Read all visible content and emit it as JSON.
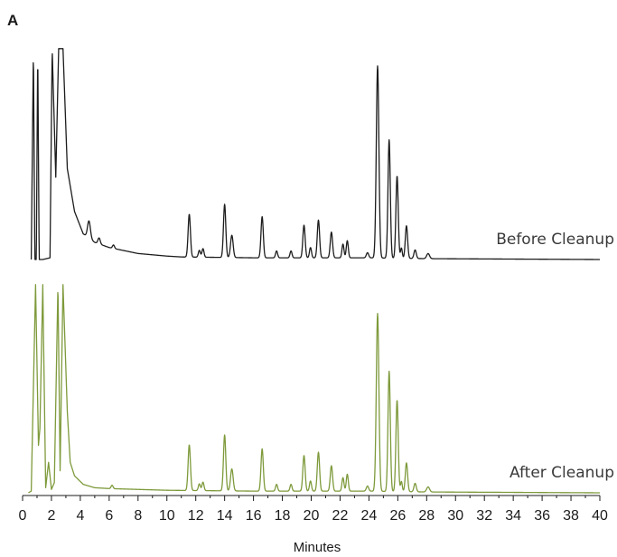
{
  "panel_label": "A",
  "chart_data": {
    "type": "line",
    "title": "",
    "xlabel": "Minutes",
    "ylabel": "",
    "xlim": [
      0,
      40
    ],
    "x_ticks": [
      0,
      2,
      4,
      6,
      8,
      10,
      12,
      14,
      16,
      18,
      20,
      22,
      24,
      26,
      28,
      30,
      32,
      34,
      36,
      38,
      40
    ],
    "x_tick_labels": [
      "0",
      "2",
      "4",
      "6",
      "8",
      "10",
      "12",
      "14",
      "16",
      "18",
      "20",
      "22",
      "24",
      "26",
      "28",
      "30",
      "32",
      "34",
      "36",
      "38",
      "40"
    ],
    "grid": false,
    "series": [
      {
        "name": "Before Cleanup",
        "color": "#1c1c1c",
        "baseline": 0.02,
        "points": [
          [
            0.6,
            0.02
          ],
          [
            0.75,
            1.25
          ],
          [
            0.85,
            0.02
          ],
          [
            0.95,
            0.02
          ],
          [
            1.05,
            1.25
          ],
          [
            1.15,
            0.02
          ],
          [
            1.4,
            0.02
          ],
          [
            1.9,
            0.03
          ],
          [
            2.05,
            1.25
          ],
          [
            2.3,
            0.5
          ],
          [
            2.5,
            1.25
          ],
          [
            2.8,
            1.25
          ],
          [
            3.1,
            0.55
          ],
          [
            3.6,
            0.3
          ],
          [
            4.2,
            0.17
          ],
          [
            5,
            0.12
          ],
          [
            6,
            0.09
          ],
          [
            8,
            0.055
          ],
          [
            10,
            0.04
          ],
          [
            11,
            0.035
          ],
          [
            16,
            0.03
          ],
          [
            20,
            0.03
          ],
          [
            24,
            0.03
          ],
          [
            28,
            0.025
          ],
          [
            40,
            0.02
          ]
        ],
        "peaks": [
          {
            "rt": 4.6,
            "h": 0.1,
            "w": 0.1
          },
          {
            "rt": 5.3,
            "h": 0.035,
            "w": 0.08
          },
          {
            "rt": 6.3,
            "h": 0.02,
            "w": 0.07
          },
          {
            "rt": 11.55,
            "h": 0.25,
            "w": 0.08
          },
          {
            "rt": 12.25,
            "h": 0.04,
            "w": 0.07
          },
          {
            "rt": 12.5,
            "h": 0.05,
            "w": 0.07
          },
          {
            "rt": 14.0,
            "h": 0.31,
            "w": 0.08
          },
          {
            "rt": 14.5,
            "h": 0.13,
            "w": 0.09
          },
          {
            "rt": 16.6,
            "h": 0.24,
            "w": 0.08
          },
          {
            "rt": 17.6,
            "h": 0.04,
            "w": 0.07
          },
          {
            "rt": 18.6,
            "h": 0.04,
            "w": 0.07
          },
          {
            "rt": 19.5,
            "h": 0.19,
            "w": 0.08
          },
          {
            "rt": 19.95,
            "h": 0.06,
            "w": 0.07
          },
          {
            "rt": 20.5,
            "h": 0.22,
            "w": 0.08
          },
          {
            "rt": 21.4,
            "h": 0.15,
            "w": 0.08
          },
          {
            "rt": 22.2,
            "h": 0.08,
            "w": 0.07
          },
          {
            "rt": 22.5,
            "h": 0.1,
            "w": 0.07
          },
          {
            "rt": 23.9,
            "h": 0.03,
            "w": 0.08
          },
          {
            "rt": 24.6,
            "h": 1.12,
            "w": 0.09
          },
          {
            "rt": 25.4,
            "h": 0.69,
            "w": 0.08
          },
          {
            "rt": 25.95,
            "h": 0.48,
            "w": 0.08
          },
          {
            "rt": 26.25,
            "h": 0.06,
            "w": 0.06
          },
          {
            "rt": 26.6,
            "h": 0.19,
            "w": 0.08
          },
          {
            "rt": 27.2,
            "h": 0.05,
            "w": 0.08
          },
          {
            "rt": 28.1,
            "h": 0.03,
            "w": 0.1
          }
        ]
      },
      {
        "name": "After Cleanup",
        "color": "#7e9a3b",
        "baseline": 0.02,
        "points": [
          [
            0.4,
            0.02
          ],
          [
            0.6,
            0.03
          ],
          [
            0.9,
            1.25
          ],
          [
            1.1,
            0.3
          ],
          [
            1.2,
            0.4
          ],
          [
            1.4,
            1.25
          ],
          [
            1.6,
            0.05
          ],
          [
            1.8,
            0.2
          ],
          [
            2.0,
            0.04
          ],
          [
            2.2,
            0.08
          ],
          [
            2.45,
            1.25
          ],
          [
            2.6,
            0.15
          ],
          [
            2.8,
            1.25
          ],
          [
            3.1,
            0.5
          ],
          [
            3.3,
            0.2
          ],
          [
            3.6,
            0.12
          ],
          [
            4.2,
            0.07
          ],
          [
            5,
            0.05
          ],
          [
            6,
            0.045
          ],
          [
            8,
            0.04
          ],
          [
            10,
            0.035
          ],
          [
            16,
            0.03
          ],
          [
            24,
            0.03
          ],
          [
            28,
            0.025
          ],
          [
            40,
            0.02
          ]
        ],
        "peaks": [
          {
            "rt": 6.2,
            "h": 0.02,
            "w": 0.07
          },
          {
            "rt": 11.55,
            "h": 0.27,
            "w": 0.08
          },
          {
            "rt": 12.25,
            "h": 0.04,
            "w": 0.07
          },
          {
            "rt": 12.5,
            "h": 0.05,
            "w": 0.07
          },
          {
            "rt": 14.0,
            "h": 0.33,
            "w": 0.08
          },
          {
            "rt": 14.5,
            "h": 0.13,
            "w": 0.09
          },
          {
            "rt": 16.6,
            "h": 0.25,
            "w": 0.08
          },
          {
            "rt": 17.6,
            "h": 0.04,
            "w": 0.07
          },
          {
            "rt": 18.6,
            "h": 0.04,
            "w": 0.07
          },
          {
            "rt": 19.5,
            "h": 0.21,
            "w": 0.08
          },
          {
            "rt": 19.95,
            "h": 0.06,
            "w": 0.07
          },
          {
            "rt": 20.5,
            "h": 0.23,
            "w": 0.08
          },
          {
            "rt": 21.4,
            "h": 0.15,
            "w": 0.08
          },
          {
            "rt": 22.2,
            "h": 0.08,
            "w": 0.07
          },
          {
            "rt": 22.5,
            "h": 0.1,
            "w": 0.07
          },
          {
            "rt": 23.9,
            "h": 0.03,
            "w": 0.08
          },
          {
            "rt": 24.6,
            "h": 1.05,
            "w": 0.09
          },
          {
            "rt": 25.4,
            "h": 0.71,
            "w": 0.08
          },
          {
            "rt": 25.95,
            "h": 0.54,
            "w": 0.08
          },
          {
            "rt": 26.25,
            "h": 0.06,
            "w": 0.06
          },
          {
            "rt": 26.6,
            "h": 0.17,
            "w": 0.08
          },
          {
            "rt": 27.2,
            "h": 0.05,
            "w": 0.08
          },
          {
            "rt": 28.1,
            "h": 0.03,
            "w": 0.1
          }
        ]
      }
    ]
  }
}
